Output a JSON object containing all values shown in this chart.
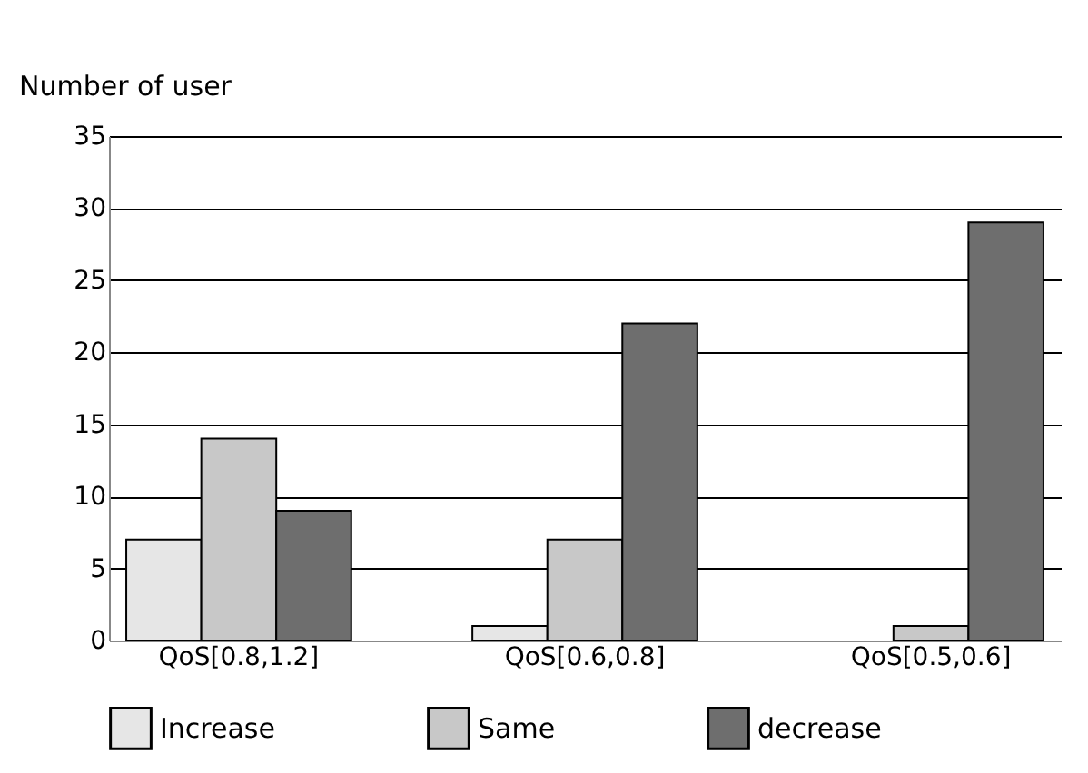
{
  "chart_data": {
    "type": "bar",
    "ylabel": "Number of user",
    "categories": [
      "QoS[0.8,1.2]",
      "QoS[0.6,0.8]",
      "QoS[0.5,0.6]"
    ],
    "series": [
      {
        "name": "Increase",
        "color": "#e6e6e6",
        "values": [
          7,
          1,
          0
        ]
      },
      {
        "name": "Same",
        "color": "#c8c8c8",
        "values": [
          14,
          7,
          1
        ]
      },
      {
        "name": "decrease",
        "color": "#6e6e6e",
        "values": [
          9,
          22,
          29
        ]
      }
    ],
    "ylim": [
      0,
      35
    ],
    "yticks": [
      0,
      5,
      10,
      15,
      20,
      25,
      30,
      35
    ],
    "grid": "y",
    "legend": "bottom"
  }
}
